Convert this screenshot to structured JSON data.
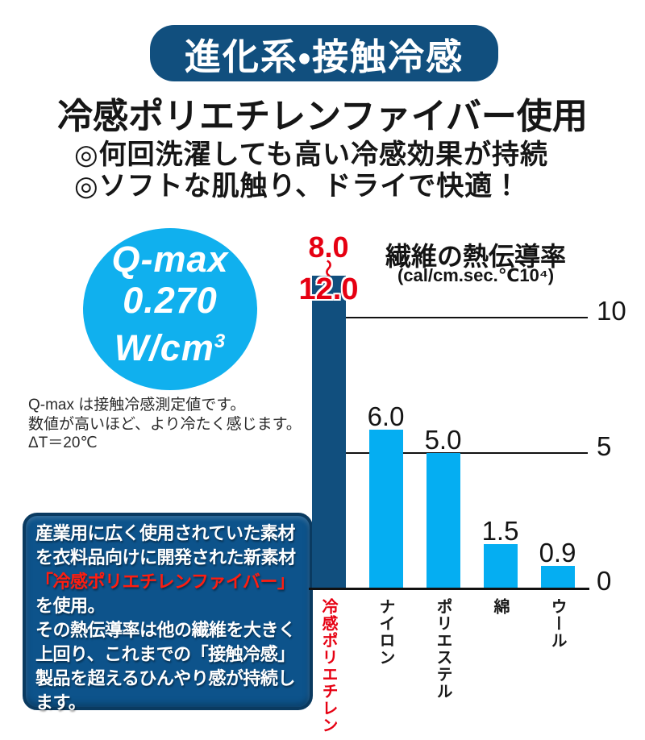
{
  "banner": {
    "label": "進化系・接触冷感"
  },
  "heading": "冷感ポリエチレンファイバー使用",
  "bullets": [
    "◎何回洗濯しても高い冷感効果が持続",
    "◎ソフトな肌触り、ドライで快適！"
  ],
  "qmax_badge": {
    "title": "Q-max",
    "value": "0.270",
    "unit_prefix": "W/cm",
    "unit_sup": "3"
  },
  "qmax_note": {
    "lines": [
      "Q-max は接触冷感測定値です。",
      "数値が高いほど、より冷たく感じます。",
      "ΔT＝20℃"
    ]
  },
  "info_box": {
    "lines": [
      {
        "text": "産業用に広く使用されていた素材",
        "red": false
      },
      {
        "text": "を衣料品向けに開発された新素材",
        "red": false
      },
      {
        "text": "「冷感ポリエチレンファイバー」",
        "red": true
      },
      {
        "text": "を使用。",
        "red": false
      },
      {
        "text": "その熱伝導率は他の繊維を大きく",
        "red": false
      },
      {
        "text": "上回り、これまでの「接触冷感」",
        "red": false
      },
      {
        "text": "製品を超えるひんやり感が持続し",
        "red": false
      },
      {
        "text": "ます。",
        "red": false
      }
    ]
  },
  "colors": {
    "navy": "#114f7e",
    "cyan": "#10b0ee",
    "red": "#e60012",
    "box-navy": "#0d538b",
    "box-border": "#0a3a60",
    "box-red": "#ff1d10",
    "light-bar": "#05aef2"
  },
  "chart_data": {
    "type": "bar",
    "title": "繊維の熱伝導率",
    "unit_label": "(cal/cm.sec.℃10⁴)",
    "categories": [
      "冷感ポリエチレン",
      "ナイロン",
      "ポリエステル",
      "綿",
      "ウール"
    ],
    "values": [
      12.0,
      6.0,
      5.0,
      1.5,
      0.9
    ],
    "value_labels": [
      "8.0〜12.0",
      "6.0",
      "5.0",
      "1.5",
      "0.9"
    ],
    "yticks": [
      0,
      5,
      10
    ],
    "ylim": [
      0,
      12
    ],
    "grid": "horizontal",
    "legend": "none",
    "bars": [
      {
        "category": "冷感ポリエチレン",
        "value_min": 8.0,
        "value_max": 12.0,
        "range_low_label": "8.0",
        "range_tilde": "〜",
        "range_high_label": "12.0",
        "display_value": 11.55,
        "color": "#114f7e",
        "category_color": "#e60012"
      },
      {
        "category": "ナイロン",
        "value": 6.0,
        "value_label": "6.0",
        "display_value": 5.85,
        "color": "#05aef2"
      },
      {
        "category": "ポリエステル",
        "value": 5.0,
        "value_label": "5.0",
        "display_value": 5.0,
        "color": "#05aef2"
      },
      {
        "category": "綿",
        "value": 1.5,
        "value_label": "1.5",
        "display_value": 1.6,
        "color": "#05aef2"
      },
      {
        "category": "ウール",
        "value": 0.9,
        "value_label": "0.9",
        "display_value": 0.8,
        "color": "#05aef2"
      }
    ]
  }
}
